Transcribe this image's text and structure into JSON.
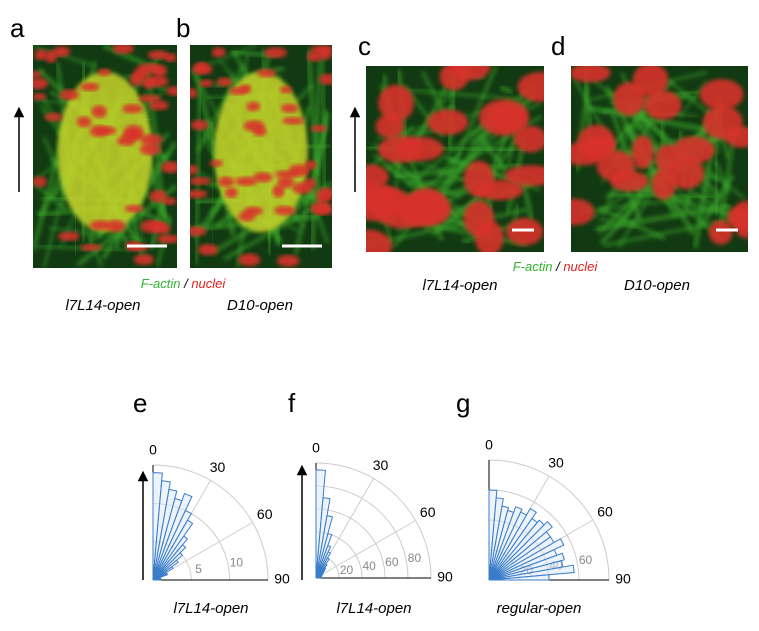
{
  "panels": [
    {
      "letter": "a",
      "label": "l7L14-open"
    },
    {
      "letter": "b",
      "label": "D10-open"
    },
    {
      "letter": "c",
      "label": "l7L14-open"
    },
    {
      "letter": "d",
      "label": "D10-open"
    }
  ],
  "legends": [
    {
      "f_actin": "F-actin",
      "separator": "/",
      "nuclei": "nuclei"
    },
    {
      "f_actin": "F-actin",
      "separator": "/",
      "nuclei": "nuclei"
    }
  ],
  "chart_letters": [
    "e",
    "f",
    "g"
  ],
  "chart_data": [
    {
      "type": "polar-histogram",
      "caption": "l7L14-open",
      "bins": [
        0,
        5,
        10,
        15,
        20,
        25,
        30,
        35,
        40,
        45,
        50,
        55,
        60,
        65,
        70,
        75,
        80,
        85,
        90
      ],
      "values": [
        14,
        13,
        12,
        11,
        12,
        10,
        9,
        7,
        6,
        5,
        4,
        3,
        2,
        2,
        1,
        1,
        1,
        1
      ],
      "rlim": [
        0,
        15
      ],
      "rticks": [
        5,
        10
      ],
      "thetaticks": [
        0,
        30,
        60,
        90
      ],
      "color": "#3a7dc9"
    },
    {
      "type": "polar-histogram",
      "caption": "l7L14-open",
      "bins": [
        0,
        5,
        10,
        15,
        20,
        25,
        30,
        35,
        40,
        45,
        50,
        55,
        60,
        65,
        70,
        75,
        80,
        85,
        90
      ],
      "values": [
        94,
        70,
        55,
        40,
        30,
        25,
        20,
        15,
        12,
        10,
        8,
        7,
        6,
        5,
        5,
        4,
        4,
        4
      ],
      "rlim": [
        0,
        100
      ],
      "rticks": [
        20,
        40,
        60,
        80
      ],
      "thetaticks": [
        0,
        30,
        60,
        90
      ],
      "color": "#3a7dc9"
    },
    {
      "type": "polar-histogram",
      "caption": "regular-open",
      "bins": [
        0,
        5,
        10,
        15,
        20,
        25,
        30,
        35,
        40,
        45,
        50,
        55,
        60,
        65,
        70,
        75,
        80,
        85,
        90
      ],
      "values": [
        60,
        55,
        50,
        48,
        52,
        50,
        55,
        50,
        52,
        55,
        50,
        50,
        55,
        48,
        52,
        50,
        57,
        40
      ],
      "rlim": [
        0,
        80
      ],
      "rticks": [
        20,
        40,
        60
      ],
      "thetaticks": [
        0,
        30,
        60,
        90
      ],
      "color": "#3a7dc9"
    }
  ]
}
